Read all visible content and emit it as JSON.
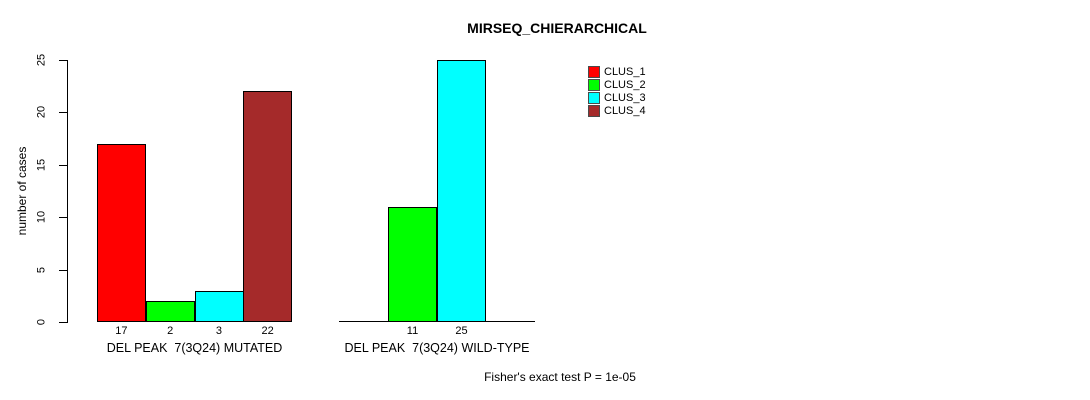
{
  "chart_data": {
    "type": "bar",
    "title": "MIRSEQ_CHIERARCHICAL",
    "ylabel": "number of cases",
    "ylim": [
      0,
      25
    ],
    "yticks": [
      0,
      5,
      10,
      15,
      20,
      25
    ],
    "grid": false,
    "legend_position": "top-right",
    "footnote": "Fisher's exact test P = 1e-05",
    "legend": [
      {
        "label": "CLUS_1",
        "color": "#ff0000"
      },
      {
        "label": "CLUS_2",
        "color": "#00ff00"
      },
      {
        "label": "CLUS_3",
        "color": "#00ffff"
      },
      {
        "label": "CLUS_4",
        "color": "#a52a2a"
      }
    ],
    "groups": [
      {
        "label": "DEL PEAK  7(3Q24) MUTATED",
        "bars": [
          {
            "cluster": "CLUS_1",
            "value": 17,
            "value_label": "17",
            "color": "#ff0000"
          },
          {
            "cluster": "CLUS_2",
            "value": 2,
            "value_label": "2",
            "color": "#00ff00"
          },
          {
            "cluster": "CLUS_3",
            "value": 3,
            "value_label": "3",
            "color": "#00ffff"
          },
          {
            "cluster": "CLUS_4",
            "value": 22,
            "value_label": "22",
            "color": "#a52a2a"
          }
        ]
      },
      {
        "label": "DEL PEAK  7(3Q24) WILD-TYPE",
        "bars": [
          {
            "cluster": "CLUS_1",
            "value": 0,
            "value_label": "",
            "color": "#ff0000"
          },
          {
            "cluster": "CLUS_2",
            "value": 11,
            "value_label": "11",
            "color": "#00ff00"
          },
          {
            "cluster": "CLUS_3",
            "value": 25,
            "value_label": "25",
            "color": "#00ffff"
          },
          {
            "cluster": "CLUS_4",
            "value": 0,
            "value_label": "",
            "color": "#a52a2a"
          }
        ]
      }
    ]
  }
}
